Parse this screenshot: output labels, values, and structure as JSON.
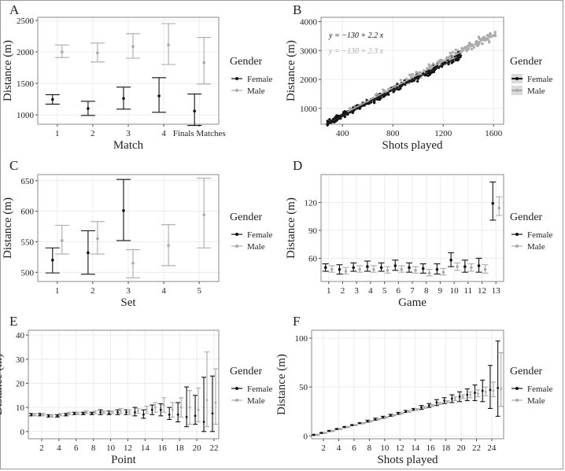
{
  "colors": {
    "female": "#111111",
    "male": "#aaaaaa",
    "grid": "#ececec",
    "panel_border": "#888888",
    "fit_female": "#222222",
    "fit_male": "#b0b0b0"
  },
  "legend": {
    "title": "Gender",
    "female": "Female",
    "male": "Male"
  },
  "chart_data": [
    {
      "panel": "A",
      "type": "errorbar",
      "xlabel": "Match",
      "ylabel": "Distance (m)",
      "categories": [
        "1",
        "2",
        "3",
        "4",
        "Finals Matches"
      ],
      "ylim": [
        850,
        2550
      ],
      "yticks": [
        1000,
        1500,
        2000,
        2500
      ],
      "series": [
        {
          "name": "Female",
          "mean": [
            1245,
            1100,
            1260,
            1300,
            1060
          ],
          "low": [
            1170,
            990,
            1090,
            1040,
            830
          ],
          "high": [
            1320,
            1215,
            1440,
            1590,
            1330
          ]
        },
        {
          "name": "Male",
          "mean": [
            2000,
            1985,
            2085,
            2110,
            1830
          ],
          "low": [
            1910,
            1840,
            1900,
            1800,
            1490
          ],
          "high": [
            2110,
            2140,
            2290,
            2450,
            2230
          ]
        }
      ]
    },
    {
      "panel": "B",
      "type": "scatter",
      "xlabel": "Shots played",
      "ylabel": "Distance (m)",
      "xlim": [
        230,
        1680
      ],
      "ylim": [
        450,
        4150
      ],
      "xticks": [
        400,
        800,
        1200,
        1600
      ],
      "yticks": [
        1000,
        2000,
        3000,
        4000
      ],
      "annotations": [
        "y = −130 + 2.2 x",
        "y = −130 + 2.3 x"
      ],
      "series": [
        {
          "name": "Female",
          "slope": 2.2,
          "intercept": -130,
          "x_range": [
            280,
            1350
          ]
        },
        {
          "name": "Male",
          "slope": 2.3,
          "intercept": -130,
          "x_range": [
            440,
            1620
          ]
        }
      ]
    },
    {
      "panel": "C",
      "type": "errorbar",
      "xlabel": "Set",
      "ylabel": "Distance (m)",
      "categories": [
        "1",
        "2",
        "3",
        "4",
        "5"
      ],
      "ylim": [
        485,
        660
      ],
      "yticks": [
        500,
        550,
        600,
        650
      ],
      "series": [
        {
          "name": "Female",
          "mean": [
            520,
            532,
            601,
            null,
            null
          ],
          "low": [
            499,
            497,
            552,
            null,
            null
          ],
          "high": [
            540,
            568,
            652,
            null,
            null
          ]
        },
        {
          "name": "Male",
          "mean": [
            552,
            555,
            515,
            544,
            594
          ],
          "low": [
            530,
            530,
            491,
            511,
            540
          ],
          "high": [
            577,
            583,
            537,
            578,
            654
          ]
        }
      ]
    },
    {
      "panel": "D",
      "type": "errorbar",
      "xlabel": "Game",
      "ylabel": "Distance (m)",
      "categories": [
        "1",
        "2",
        "3",
        "4",
        "5",
        "6",
        "7",
        "8",
        "9",
        "10",
        "11",
        "12",
        "13"
      ],
      "ylim": [
        35,
        150
      ],
      "yticks": [
        60,
        90,
        120
      ],
      "series": [
        {
          "name": "Female",
          "mean": [
            50,
            48,
            50,
            51,
            50,
            52,
            50,
            49,
            48,
            58,
            51,
            52,
            119
          ],
          "low": [
            46,
            43,
            46,
            46,
            46,
            47,
            45,
            44,
            43,
            51,
            45,
            45,
            101
          ],
          "high": [
            54,
            53,
            55,
            57,
            55,
            58,
            55,
            54,
            54,
            66,
            58,
            60,
            142
          ]
        },
        {
          "name": "Male",
          "mean": [
            48,
            46,
            48,
            48,
            47,
            48,
            47,
            44,
            45,
            51,
            50,
            48,
            114
          ],
          "low": [
            45,
            43,
            45,
            45,
            44,
            45,
            44,
            41,
            42,
            47,
            46,
            44,
            106
          ],
          "high": [
            52,
            50,
            52,
            52,
            51,
            52,
            51,
            48,
            49,
            55,
            54,
            53,
            126
          ]
        }
      ]
    },
    {
      "panel": "E",
      "type": "errorbar",
      "xlabel": "Point",
      "ylabel": "Distance (m)",
      "categories": [
        "1",
        "2",
        "3",
        "4",
        "5",
        "6",
        "7",
        "8",
        "9",
        "10",
        "11",
        "12",
        "13",
        "14",
        "15",
        "16",
        "17",
        "18",
        "19",
        "20",
        "21",
        "22"
      ],
      "xticks": [
        2,
        4,
        6,
        8,
        10,
        12,
        14,
        16,
        18,
        20,
        22
      ],
      "ylim": [
        -3,
        42
      ],
      "yticks": [
        0,
        10,
        20,
        30,
        40
      ],
      "series": [
        {
          "name": "Female",
          "mean": [
            7,
            7,
            6.5,
            6.5,
            7,
            7.5,
            7.5,
            7.5,
            8,
            7.5,
            8,
            8,
            8,
            7,
            9,
            9,
            7,
            7,
            6,
            6.5,
            4,
            7.5
          ],
          "low": [
            6.5,
            6.5,
            6,
            6,
            6.5,
            7,
            7,
            7,
            7,
            7,
            7,
            7,
            6.5,
            5.5,
            7,
            6.5,
            5,
            4,
            2,
            3,
            0,
            0
          ],
          "high": [
            7.5,
            7.5,
            7,
            7,
            7.5,
            8,
            8,
            8,
            9,
            8.5,
            9,
            9,
            10,
            9,
            11,
            11.5,
            10,
            12,
            18.5,
            15,
            22.5,
            23
          ]
        },
        {
          "name": "Male",
          "mean": [
            7,
            7,
            6.5,
            7,
            7.5,
            7.5,
            8,
            8,
            8,
            8,
            8.5,
            8,
            8.5,
            9,
            10,
            11,
            9,
            10,
            10,
            9,
            13,
            12
          ],
          "low": [
            6.5,
            6.5,
            6,
            6.5,
            7,
            7,
            7.5,
            7.5,
            7.5,
            7.5,
            7.5,
            7,
            7.5,
            7.5,
            8,
            8,
            6,
            6,
            3,
            4,
            2,
            3
          ],
          "high": [
            7.5,
            7.5,
            7,
            7.5,
            8,
            8,
            8.5,
            8.5,
            8.5,
            8.5,
            9.5,
            9,
            9.5,
            10.5,
            12,
            14,
            12,
            14,
            17,
            18,
            33,
            26
          ]
        }
      ]
    },
    {
      "panel": "F",
      "type": "errorbar",
      "xlabel": "Shots played",
      "ylabel": "Distance (m)",
      "categories": [
        "1",
        "2",
        "3",
        "4",
        "5",
        "6",
        "7",
        "8",
        "9",
        "10",
        "11",
        "12",
        "13",
        "14",
        "15",
        "16",
        "17",
        "18",
        "19",
        "20",
        "21",
        "22",
        "23",
        "24",
        "25"
      ],
      "xticks": [
        2,
        4,
        6,
        8,
        10,
        12,
        14,
        16,
        18,
        20,
        22,
        24
      ],
      "ylim": [
        -3,
        108
      ],
      "yticks": [
        0,
        50,
        100
      ],
      "series": [
        {
          "name": "Female",
          "mean": [
            1,
            3,
            5,
            7,
            9,
            11,
            13,
            15,
            17,
            19,
            21,
            23,
            25,
            27,
            29,
            31,
            34,
            36,
            38,
            40,
            42,
            44,
            46,
            47,
            49
          ],
          "low": [
            0.5,
            2.5,
            4.5,
            6.5,
            8.5,
            10.5,
            12.5,
            14,
            16,
            18,
            20,
            22,
            24,
            26,
            27,
            29,
            31,
            33,
            34,
            35,
            36,
            36,
            35,
            28,
            20
          ],
          "high": [
            1.5,
            3.5,
            5.5,
            7.5,
            9.5,
            11.5,
            13.5,
            16,
            18,
            20,
            22,
            24,
            26,
            28,
            31,
            33,
            37,
            39,
            42,
            45,
            48,
            52,
            57,
            72,
            97
          ]
        },
        {
          "name": "Male",
          "mean": [
            1,
            3,
            5,
            7,
            9,
            11,
            13,
            15,
            17,
            19,
            21,
            23,
            25,
            27,
            29,
            31,
            33,
            35,
            38,
            40,
            42,
            43,
            45,
            46,
            48
          ],
          "low": [
            0.5,
            2.5,
            4.5,
            6.5,
            8.5,
            10.5,
            12.5,
            14.5,
            16.5,
            18.5,
            20.5,
            22.5,
            24,
            26,
            28,
            30,
            32,
            34,
            36,
            38,
            39,
            40,
            41,
            40,
            30
          ],
          "high": [
            1.5,
            3.5,
            5.5,
            7.5,
            9.5,
            11.5,
            13.5,
            15.5,
            17.5,
            19.5,
            21.5,
            23.5,
            26,
            28,
            30,
            32,
            34,
            36,
            40,
            42,
            45,
            47,
            50,
            55,
            85
          ]
        }
      ]
    }
  ]
}
